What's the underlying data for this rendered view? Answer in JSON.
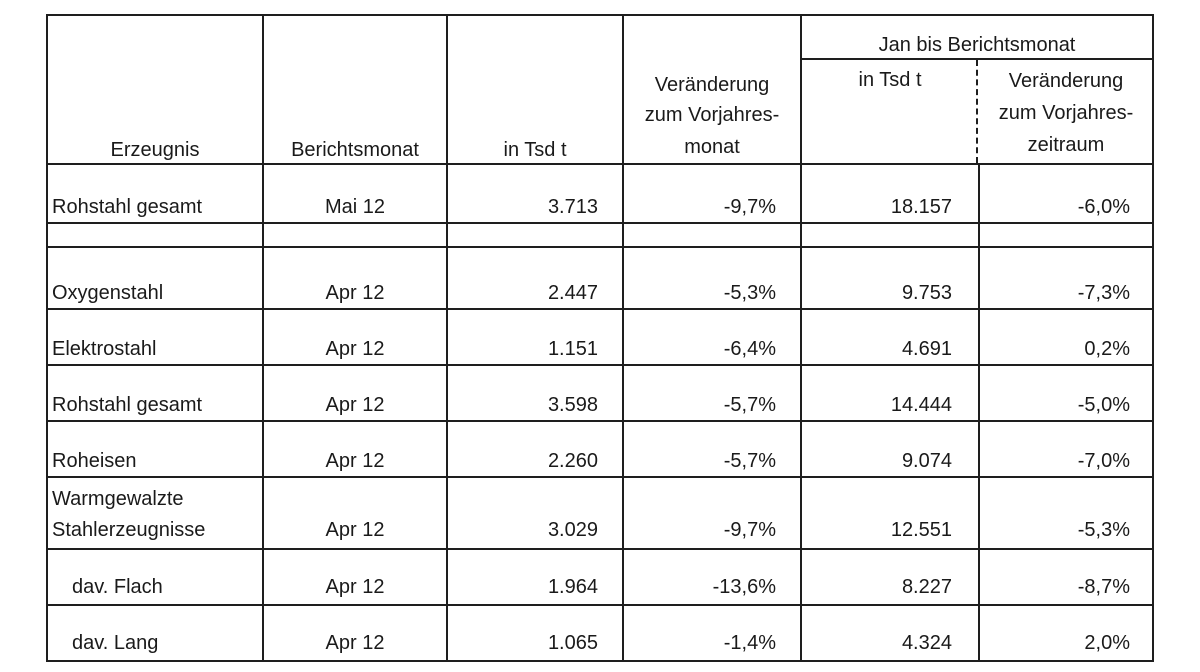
{
  "header": {
    "product": "Erzeugnis",
    "report_month": "Berichtsmonat",
    "in_tsd_t": "in Tsd t",
    "change_month_lines": [
      "Veränderung",
      "zum Vorjahres-",
      "monat"
    ],
    "ytd_group": "Jan bis Berichtsmonat",
    "ytd_in_tsd_t": "in Tsd t",
    "change_period_lines": [
      "Veränderung",
      "zum Vorjahres-",
      "zeitraum"
    ]
  },
  "top_row": {
    "product": "Rohstahl gesamt",
    "month": "Mai 12",
    "value": "3.713",
    "change": "-9,7%",
    "ytd": "18.157",
    "ytd_change": "-6,0%"
  },
  "rows": [
    {
      "product": "Oxygenstahl",
      "month": "Apr 12",
      "value": "2.447",
      "change": "-5,3%",
      "ytd": "9.753",
      "ytd_change": "-7,3%"
    },
    {
      "product": "Elektrostahl",
      "month": "Apr 12",
      "value": "1.151",
      "change": "-6,4%",
      "ytd": "4.691",
      "ytd_change": "0,2%"
    },
    {
      "product": "Rohstahl gesamt",
      "month": "Apr 12",
      "value": "3.598",
      "change": "-5,7%",
      "ytd": "14.444",
      "ytd_change": "-5,0%"
    },
    {
      "product": "Roheisen",
      "month": "Apr 12",
      "value": "2.260",
      "change": "-5,7%",
      "ytd": "9.074",
      "ytd_change": "-7,0%"
    },
    {
      "product_lines": [
        "Warmgewalzte",
        "Stahlerzeugnisse"
      ],
      "month": "Apr 12",
      "value": "3.029",
      "change": "-9,7%",
      "ytd": "12.551",
      "ytd_change": "-5,3%"
    },
    {
      "product": "dav. Flach",
      "month": "Apr 12",
      "value": "1.964",
      "change": "-13,6%",
      "ytd": "8.227",
      "ytd_change": "-8,7%"
    },
    {
      "product": "dav. Lang",
      "month": "Apr 12",
      "value": "1.065",
      "change": "-1,4%",
      "ytd": "4.324",
      "ytd_change": "2,0%"
    }
  ]
}
